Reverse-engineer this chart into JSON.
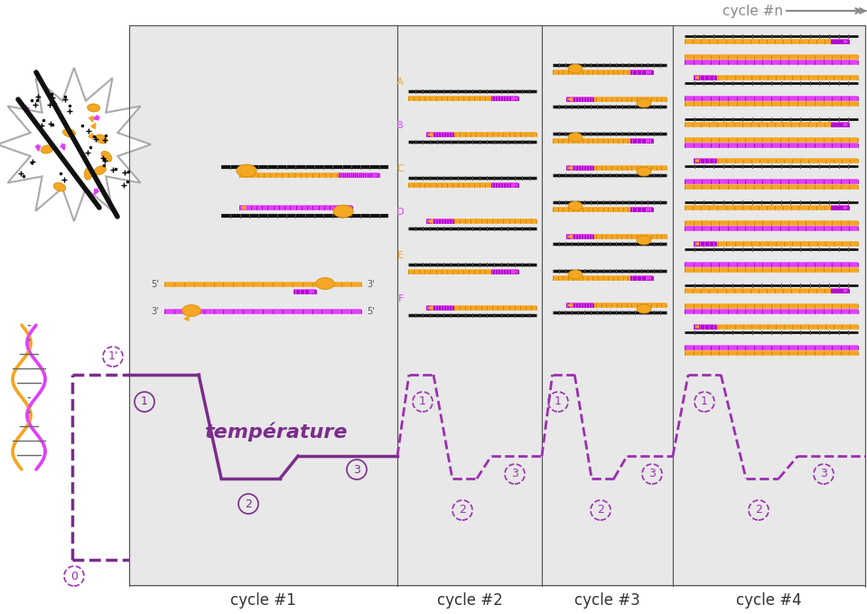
{
  "bg_color": "#ffffff",
  "panel_bg": "#e8e8e8",
  "white_bg": "#ffffff",
  "purple_solid": "#7b2d8b",
  "purple_dashed": "#9b30b0",
  "orange_color": "#f5a623",
  "magenta_color": "#e040fb",
  "black_color": "#111111",
  "gray_text": "#888888",
  "title_cycle_n": "cycle #n",
  "cycle_labels": [
    "cycle #1",
    "cycle #2",
    "cycle #3",
    "cycle #4"
  ],
  "temp_label": "température",
  "step_labels": [
    "0",
    "1",
    "1'",
    "1",
    "2",
    "3"
  ],
  "abc_labels": [
    "A",
    "B",
    "C",
    "D",
    "E",
    "F"
  ]
}
